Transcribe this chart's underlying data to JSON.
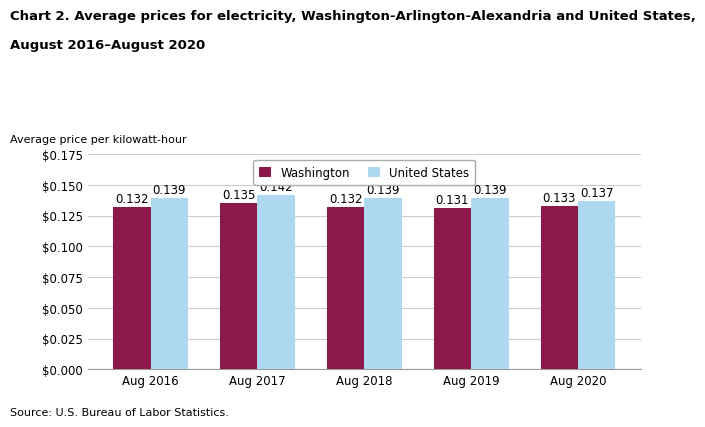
{
  "title_line1": "Chart 2. Average prices for electricity, Washington-Arlington-Alexandria and United States,",
  "title_line2": "August 2016–August 2020",
  "ylabel": "Average price per kilowatt-hour",
  "source": "Source: U.S. Bureau of Labor Statistics.",
  "categories": [
    "Aug 2016",
    "Aug 2017",
    "Aug 2018",
    "Aug 2019",
    "Aug 2020"
  ],
  "washington_values": [
    0.132,
    0.135,
    0.132,
    0.131,
    0.133
  ],
  "us_values": [
    0.139,
    0.142,
    0.139,
    0.139,
    0.137
  ],
  "washington_color": "#8B1A4A",
  "us_color": "#ADD8F0",
  "ylim": [
    0.0,
    0.175
  ],
  "yticks": [
    0.0,
    0.025,
    0.05,
    0.075,
    0.1,
    0.125,
    0.15,
    0.175
  ],
  "legend_washington": "Washington",
  "legend_us": "United States",
  "bar_width": 0.35,
  "title_fontsize": 9.5,
  "ylabel_fontsize": 8,
  "tick_fontsize": 8.5,
  "annotation_fontsize": 8.5,
  "legend_fontsize": 8.5,
  "source_fontsize": 8,
  "background_color": "#ffffff",
  "grid_color": "#cccccc"
}
